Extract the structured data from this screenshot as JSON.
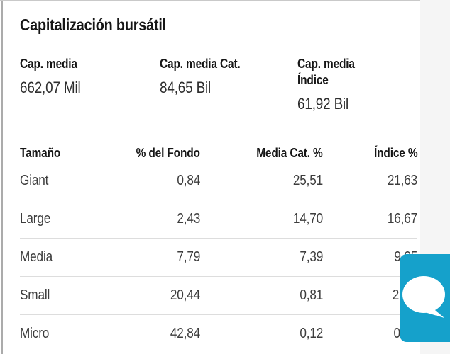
{
  "title": "Capitalización bursátil",
  "stats": [
    {
      "label": "Cap. media",
      "value": "662,07 Mil"
    },
    {
      "label": "Cap. media Cat.",
      "value": "84,65 Bil"
    },
    {
      "label": "Cap. media Índice",
      "value": "61,92 Bil"
    }
  ],
  "table": {
    "columns": [
      "Tamaño",
      "% del Fondo",
      "Media Cat. %",
      "Índice %"
    ],
    "rows": [
      {
        "size": "Giant",
        "fund": "0,84",
        "cat": "25,51",
        "index": "21,63"
      },
      {
        "size": "Large",
        "fund": "2,43",
        "cat": "14,70",
        "index": "16,67"
      },
      {
        "size": "Media",
        "fund": "7,79",
        "cat": "7,39",
        "index": "9,05"
      },
      {
        "size": "Small",
        "fund": "20,44",
        "cat": "0,81",
        "index": "2,"
      },
      {
        "size": "Micro",
        "fund": "42,84",
        "cat": "0,12",
        "index": "0,0"
      }
    ]
  },
  "chat_widget": {
    "color": "#15a1cb",
    "icon": "speech-bubble-icon"
  }
}
